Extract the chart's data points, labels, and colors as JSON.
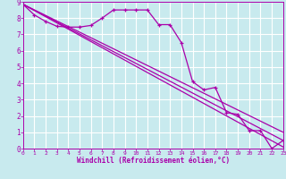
{
  "xlabel": "Windchill (Refroidissement éolien,°C)",
  "bg_color": "#c8eaee",
  "grid_color": "#ffffff",
  "line_color": "#aa00aa",
  "xlim": [
    0,
    23
  ],
  "ylim": [
    0,
    9
  ],
  "xticks": [
    0,
    1,
    2,
    3,
    4,
    5,
    6,
    7,
    8,
    9,
    10,
    11,
    12,
    13,
    14,
    15,
    16,
    17,
    18,
    19,
    20,
    21,
    22,
    23
  ],
  "yticks": [
    0,
    1,
    2,
    3,
    4,
    5,
    6,
    7,
    8,
    9
  ],
  "main_x": [
    0,
    1,
    2,
    3,
    4,
    5,
    6,
    7,
    8,
    9,
    10,
    11,
    12,
    13,
    14,
    15,
    16,
    17,
    18,
    19,
    20,
    21,
    22,
    23
  ],
  "main_y": [
    8.85,
    8.2,
    7.8,
    7.5,
    7.45,
    7.45,
    7.55,
    8.0,
    8.5,
    8.5,
    8.5,
    8.5,
    7.6,
    7.6,
    6.5,
    4.1,
    3.6,
    3.75,
    2.2,
    2.1,
    1.1,
    1.1,
    0.0,
    0.5
  ],
  "trend1_y_end": 1.0,
  "trend2_y_end": 0.5,
  "trend3_y_end": 0.1,
  "trend_y_start": 8.85
}
